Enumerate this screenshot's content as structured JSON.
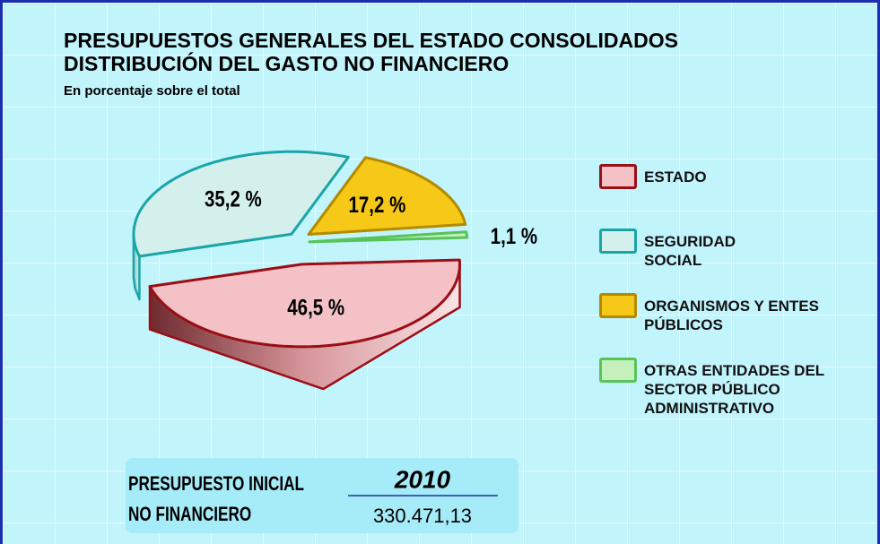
{
  "chart_data": {
    "type": "pie",
    "title": [
      "PRESUPUESTOS GENERALES DEL ESTADO CONSOLIDADOS",
      "DISTRIBUCIÓN DEL GASTO NO FINANCIERO"
    ],
    "subtitle": "En porcentaje sobre el total",
    "categories": [
      "ESTADO",
      "SEGURIDAD SOCIAL",
      "ORGANISMOS Y ENTES PÚBLICOS",
      "OTRAS ENTIDADES DEL SECTOR PÚBLICO ADMINISTRATIVO"
    ],
    "values": [
      46.5,
      35.2,
      17.2,
      1.1
    ],
    "value_labels": [
      "46,5 %",
      "35,2 %",
      "17,2 %",
      "1,1 %"
    ],
    "colors": [
      "#f4c2c6",
      "#d4f0ec",
      "#f6c817",
      "#c4f0bc"
    ],
    "edge_colors": [
      "#9a0e16",
      "#19a5a8",
      "#b38a00",
      "#58c458"
    ],
    "budget": {
      "label": [
        "PRESUPUESTO INICIAL",
        "NO FINANCIERO"
      ],
      "year": "2010",
      "amount": "330.471,13"
    }
  }
}
